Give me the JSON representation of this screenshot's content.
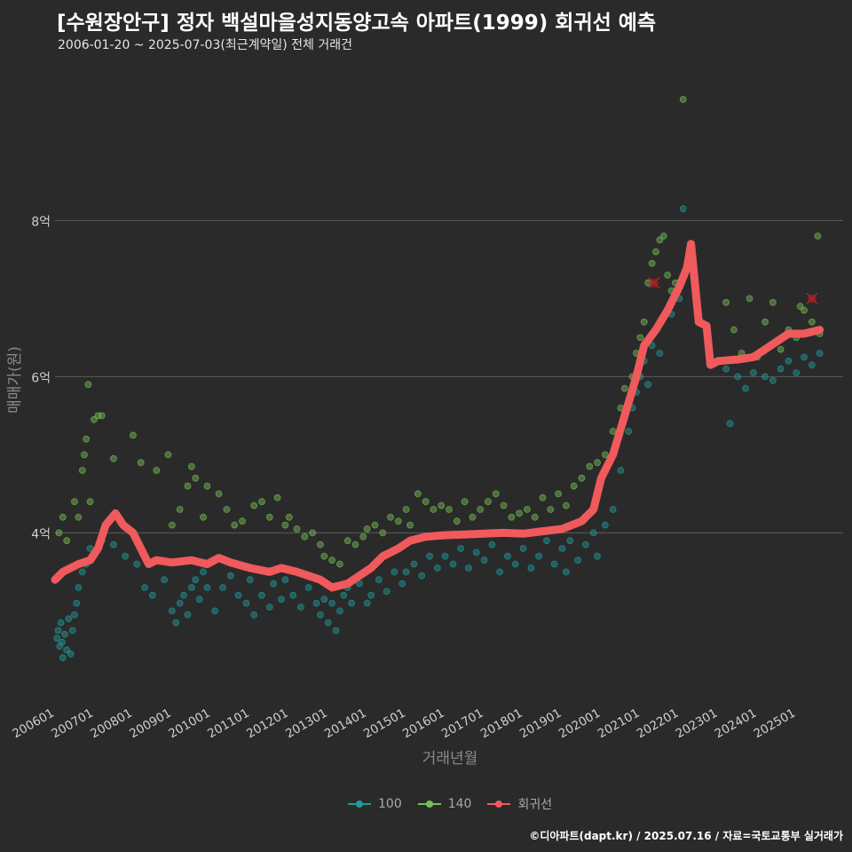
{
  "title": "[수원장안구] 정자 백설마을성지동양고속 아파트(1999) 회귀선 예측",
  "subtitle": "2006-01-20 ~ 2025-07-03(최근계약일) 전체 거래건",
  "caption": "©디아파트(dapt.kr) / 2025.07.16 / 자료=국토교통부 실거래가",
  "colors": {
    "background": "#2a2a2b",
    "grid": "#5a5a5a",
    "series_100": "#1f9e99",
    "series_140": "#76c155",
    "regression": "#f05a5c",
    "outlier": "#b22222"
  },
  "chart_data": {
    "type": "scatter",
    "title": "[수원장안구] 정자 백설마을성지동양고속 아파트(1999) 회귀선 예측",
    "xlabel": "거래년월",
    "ylabel": "매매가(원)",
    "xlim": [
      2006.0,
      2026.2
    ],
    "ylim": [
      1.8,
      9.8
    ],
    "y_unit": "억",
    "y_ticks": [
      {
        "value": 4,
        "label": "4억"
      },
      {
        "value": 6,
        "label": "6억"
      },
      {
        "value": 8,
        "label": "8억"
      }
    ],
    "x_ticks": [
      {
        "value": 2006,
        "label": "200601"
      },
      {
        "value": 2007,
        "label": "200701"
      },
      {
        "value": 2008,
        "label": "200801"
      },
      {
        "value": 2009,
        "label": "200901"
      },
      {
        "value": 2010,
        "label": "201001"
      },
      {
        "value": 2011,
        "label": "201101"
      },
      {
        "value": 2012,
        "label": "201201"
      },
      {
        "value": 2013,
        "label": "201301"
      },
      {
        "value": 2014,
        "label": "201401"
      },
      {
        "value": 2015,
        "label": "201501"
      },
      {
        "value": 2016,
        "label": "201601"
      },
      {
        "value": 2017,
        "label": "201701"
      },
      {
        "value": 2018,
        "label": "201801"
      },
      {
        "value": 2019,
        "label": "201901"
      },
      {
        "value": 2020,
        "label": "202001"
      },
      {
        "value": 2021,
        "label": "202101"
      },
      {
        "value": 2022,
        "label": "202201"
      },
      {
        "value": 2023,
        "label": "202301"
      },
      {
        "value": 2024,
        "label": "202401"
      },
      {
        "value": 2025,
        "label": "202501"
      }
    ],
    "legend": [
      {
        "key": "100",
        "label": "100"
      },
      {
        "key": "140",
        "label": "140"
      },
      {
        "key": "reg",
        "label": "회귀선"
      }
    ],
    "legend_position": "bottom",
    "series": [
      {
        "name": "100",
        "points": [
          [
            2006.05,
            2.65
          ],
          [
            2006.08,
            2.75
          ],
          [
            2006.12,
            2.55
          ],
          [
            2006.15,
            2.85
          ],
          [
            2006.18,
            2.6
          ],
          [
            2006.2,
            2.4
          ],
          [
            2006.25,
            2.7
          ],
          [
            2006.3,
            2.5
          ],
          [
            2006.35,
            2.9
          ],
          [
            2006.4,
            2.45
          ],
          [
            2006.45,
            2.75
          ],
          [
            2006.5,
            2.95
          ],
          [
            2006.55,
            3.1
          ],
          [
            2006.6,
            3.3
          ],
          [
            2006.7,
            3.5
          ],
          [
            2006.8,
            3.6
          ],
          [
            2006.9,
            3.8
          ],
          [
            2007.2,
            3.9
          ],
          [
            2007.5,
            3.85
          ],
          [
            2007.8,
            3.7
          ],
          [
            2008.1,
            3.6
          ],
          [
            2008.3,
            3.3
          ],
          [
            2008.5,
            3.2
          ],
          [
            2008.8,
            3.4
          ],
          [
            2009.0,
            3.0
          ],
          [
            2009.1,
            2.85
          ],
          [
            2009.2,
            3.1
          ],
          [
            2009.3,
            3.2
          ],
          [
            2009.4,
            2.95
          ],
          [
            2009.5,
            3.3
          ],
          [
            2009.6,
            3.4
          ],
          [
            2009.7,
            3.15
          ],
          [
            2009.8,
            3.5
          ],
          [
            2009.9,
            3.3
          ],
          [
            2010.1,
            3.0
          ],
          [
            2010.3,
            3.3
          ],
          [
            2010.5,
            3.45
          ],
          [
            2010.7,
            3.2
          ],
          [
            2010.9,
            3.1
          ],
          [
            2011.0,
            3.4
          ],
          [
            2011.1,
            2.95
          ],
          [
            2011.3,
            3.2
          ],
          [
            2011.5,
            3.05
          ],
          [
            2011.6,
            3.35
          ],
          [
            2011.8,
            3.15
          ],
          [
            2011.9,
            3.4
          ],
          [
            2012.1,
            3.2
          ],
          [
            2012.3,
            3.05
          ],
          [
            2012.5,
            3.3
          ],
          [
            2012.7,
            3.1
          ],
          [
            2012.8,
            2.95
          ],
          [
            2012.9,
            3.15
          ],
          [
            2013.0,
            2.85
          ],
          [
            2013.1,
            3.1
          ],
          [
            2013.2,
            2.75
          ],
          [
            2013.3,
            3.0
          ],
          [
            2013.4,
            3.2
          ],
          [
            2013.5,
            3.3
          ],
          [
            2013.6,
            3.1
          ],
          [
            2013.8,
            3.35
          ],
          [
            2014.0,
            3.1
          ],
          [
            2014.1,
            3.2
          ],
          [
            2014.3,
            3.4
          ],
          [
            2014.5,
            3.25
          ],
          [
            2014.7,
            3.5
          ],
          [
            2014.9,
            3.35
          ],
          [
            2015.0,
            3.5
          ],
          [
            2015.2,
            3.6
          ],
          [
            2015.4,
            3.45
          ],
          [
            2015.6,
            3.7
          ],
          [
            2015.8,
            3.55
          ],
          [
            2016.0,
            3.7
          ],
          [
            2016.2,
            3.6
          ],
          [
            2016.4,
            3.8
          ],
          [
            2016.6,
            3.55
          ],
          [
            2016.8,
            3.75
          ],
          [
            2017.0,
            3.65
          ],
          [
            2017.2,
            3.85
          ],
          [
            2017.4,
            3.5
          ],
          [
            2017.6,
            3.7
          ],
          [
            2017.8,
            3.6
          ],
          [
            2018.0,
            3.8
          ],
          [
            2018.2,
            3.55
          ],
          [
            2018.4,
            3.7
          ],
          [
            2018.6,
            3.9
          ],
          [
            2018.8,
            3.6
          ],
          [
            2019.0,
            3.8
          ],
          [
            2019.1,
            3.5
          ],
          [
            2019.2,
            3.9
          ],
          [
            2019.4,
            3.65
          ],
          [
            2019.6,
            3.85
          ],
          [
            2019.8,
            4.0
          ],
          [
            2019.9,
            3.7
          ],
          [
            2020.1,
            4.1
          ],
          [
            2020.3,
            4.3
          ],
          [
            2020.5,
            4.8
          ],
          [
            2020.7,
            5.3
          ],
          [
            2020.8,
            5.6
          ],
          [
            2020.9,
            5.8
          ],
          [
            2021.0,
            6.0
          ],
          [
            2021.1,
            6.2
          ],
          [
            2021.2,
            5.9
          ],
          [
            2021.3,
            6.4
          ],
          [
            2021.5,
            6.3
          ],
          [
            2021.8,
            6.8
          ],
          [
            2022.0,
            7.0
          ],
          [
            2022.1,
            8.15
          ],
          [
            2023.2,
            6.1
          ],
          [
            2023.3,
            5.4
          ],
          [
            2023.5,
            6.0
          ],
          [
            2023.7,
            5.85
          ],
          [
            2023.9,
            6.05
          ],
          [
            2024.2,
            6.0
          ],
          [
            2024.4,
            5.95
          ],
          [
            2024.6,
            6.1
          ],
          [
            2024.8,
            6.2
          ],
          [
            2025.0,
            6.05
          ],
          [
            2025.2,
            6.25
          ],
          [
            2025.4,
            6.15
          ],
          [
            2025.6,
            6.3
          ]
        ]
      },
      {
        "name": "140",
        "points": [
          [
            2006.1,
            4.0
          ],
          [
            2006.2,
            4.2
          ],
          [
            2006.3,
            3.9
          ],
          [
            2006.5,
            4.4
          ],
          [
            2006.6,
            4.2
          ],
          [
            2006.7,
            4.8
          ],
          [
            2006.75,
            5.0
          ],
          [
            2006.8,
            5.2
          ],
          [
            2006.85,
            5.9
          ],
          [
            2006.9,
            4.4
          ],
          [
            2007.0,
            5.45
          ],
          [
            2007.1,
            5.5
          ],
          [
            2007.2,
            5.5
          ],
          [
            2007.5,
            4.95
          ],
          [
            2008.0,
            5.25
          ],
          [
            2008.2,
            4.9
          ],
          [
            2008.6,
            4.8
          ],
          [
            2008.9,
            5.0
          ],
          [
            2009.0,
            4.1
          ],
          [
            2009.2,
            4.3
          ],
          [
            2009.4,
            4.6
          ],
          [
            2009.5,
            4.85
          ],
          [
            2009.6,
            4.7
          ],
          [
            2009.8,
            4.2
          ],
          [
            2009.9,
            4.6
          ],
          [
            2010.2,
            4.5
          ],
          [
            2010.4,
            4.3
          ],
          [
            2010.6,
            4.1
          ],
          [
            2010.8,
            4.15
          ],
          [
            2011.1,
            4.35
          ],
          [
            2011.3,
            4.4
          ],
          [
            2011.5,
            4.2
          ],
          [
            2011.7,
            4.45
          ],
          [
            2011.9,
            4.1
          ],
          [
            2012.0,
            4.2
          ],
          [
            2012.2,
            4.05
          ],
          [
            2012.4,
            3.95
          ],
          [
            2012.6,
            4.0
          ],
          [
            2012.8,
            3.85
          ],
          [
            2012.9,
            3.7
          ],
          [
            2013.1,
            3.65
          ],
          [
            2013.3,
            3.6
          ],
          [
            2013.5,
            3.9
          ],
          [
            2013.7,
            3.85
          ],
          [
            2013.9,
            3.95
          ],
          [
            2014.0,
            4.05
          ],
          [
            2014.2,
            4.1
          ],
          [
            2014.4,
            4.0
          ],
          [
            2014.6,
            4.2
          ],
          [
            2014.8,
            4.15
          ],
          [
            2015.0,
            4.3
          ],
          [
            2015.1,
            4.1
          ],
          [
            2015.3,
            4.5
          ],
          [
            2015.5,
            4.4
          ],
          [
            2015.7,
            4.3
          ],
          [
            2015.9,
            4.35
          ],
          [
            2016.1,
            4.3
          ],
          [
            2016.3,
            4.15
          ],
          [
            2016.5,
            4.4
          ],
          [
            2016.7,
            4.2
          ],
          [
            2016.9,
            4.3
          ],
          [
            2017.1,
            4.4
          ],
          [
            2017.3,
            4.5
          ],
          [
            2017.5,
            4.35
          ],
          [
            2017.7,
            4.2
          ],
          [
            2017.9,
            4.25
          ],
          [
            2018.1,
            4.3
          ],
          [
            2018.3,
            4.2
          ],
          [
            2018.5,
            4.45
          ],
          [
            2018.7,
            4.3
          ],
          [
            2018.9,
            4.5
          ],
          [
            2019.1,
            4.35
          ],
          [
            2019.3,
            4.6
          ],
          [
            2019.5,
            4.7
          ],
          [
            2019.7,
            4.85
          ],
          [
            2019.9,
            4.9
          ],
          [
            2020.1,
            5.0
          ],
          [
            2020.3,
            5.3
          ],
          [
            2020.5,
            5.6
          ],
          [
            2020.6,
            5.85
          ],
          [
            2020.8,
            6.0
          ],
          [
            2020.9,
            6.3
          ],
          [
            2021.0,
            6.5
          ],
          [
            2021.1,
            6.7
          ],
          [
            2021.2,
            7.2
          ],
          [
            2021.3,
            7.45
          ],
          [
            2021.4,
            7.6
          ],
          [
            2021.5,
            7.75
          ],
          [
            2021.6,
            7.8
          ],
          [
            2021.7,
            7.3
          ],
          [
            2021.8,
            7.1
          ],
          [
            2021.9,
            7.2
          ],
          [
            2022.1,
            9.55
          ],
          [
            2023.2,
            6.95
          ],
          [
            2023.4,
            6.6
          ],
          [
            2023.6,
            6.3
          ],
          [
            2023.8,
            7.0
          ],
          [
            2024.0,
            6.25
          ],
          [
            2024.2,
            6.7
          ],
          [
            2024.4,
            6.95
          ],
          [
            2024.6,
            6.35
          ],
          [
            2024.8,
            6.6
          ],
          [
            2025.0,
            6.5
          ],
          [
            2025.1,
            6.9
          ],
          [
            2025.2,
            6.85
          ],
          [
            2025.4,
            6.7
          ],
          [
            2025.55,
            7.8
          ],
          [
            2025.6,
            6.55
          ]
        ]
      }
    ],
    "outliers": [
      [
        2021.35,
        7.2
      ],
      [
        2025.4,
        7.0
      ]
    ],
    "regression": [
      [
        2006.0,
        3.4
      ],
      [
        2006.2,
        3.5
      ],
      [
        2006.6,
        3.6
      ],
      [
        2006.9,
        3.65
      ],
      [
        2007.1,
        3.8
      ],
      [
        2007.3,
        4.1
      ],
      [
        2007.55,
        4.25
      ],
      [
        2007.75,
        4.1
      ],
      [
        2008.0,
        4.0
      ],
      [
        2008.2,
        3.8
      ],
      [
        2008.4,
        3.6
      ],
      [
        2008.6,
        3.65
      ],
      [
        2009.0,
        3.62
      ],
      [
        2009.5,
        3.65
      ],
      [
        2009.9,
        3.6
      ],
      [
        2010.2,
        3.68
      ],
      [
        2010.5,
        3.62
      ],
      [
        2011.0,
        3.55
      ],
      [
        2011.5,
        3.5
      ],
      [
        2011.8,
        3.55
      ],
      [
        2012.2,
        3.5
      ],
      [
        2012.5,
        3.45
      ],
      [
        2012.8,
        3.4
      ],
      [
        2013.1,
        3.3
      ],
      [
        2013.5,
        3.35
      ],
      [
        2013.8,
        3.45
      ],
      [
        2014.1,
        3.55
      ],
      [
        2014.4,
        3.7
      ],
      [
        2014.8,
        3.8
      ],
      [
        2015.1,
        3.9
      ],
      [
        2015.5,
        3.95
      ],
      [
        2016.0,
        3.97
      ],
      [
        2016.5,
        3.98
      ],
      [
        2017.0,
        3.99
      ],
      [
        2017.5,
        4.0
      ],
      [
        2018.0,
        3.99
      ],
      [
        2018.5,
        4.02
      ],
      [
        2019.0,
        4.05
      ],
      [
        2019.5,
        4.15
      ],
      [
        2019.8,
        4.3
      ],
      [
        2020.0,
        4.7
      ],
      [
        2020.3,
        5.0
      ],
      [
        2020.6,
        5.5
      ],
      [
        2020.9,
        6.0
      ],
      [
        2021.1,
        6.4
      ],
      [
        2021.4,
        6.6
      ],
      [
        2021.7,
        6.85
      ],
      [
        2022.0,
        7.15
      ],
      [
        2022.2,
        7.4
      ],
      [
        2022.3,
        7.7
      ],
      [
        2022.5,
        6.7
      ],
      [
        2022.7,
        6.65
      ],
      [
        2022.8,
        6.15
      ],
      [
        2023.0,
        6.2
      ],
      [
        2023.5,
        6.22
      ],
      [
        2023.9,
        6.25
      ],
      [
        2024.2,
        6.35
      ],
      [
        2024.5,
        6.45
      ],
      [
        2024.8,
        6.55
      ],
      [
        2025.2,
        6.55
      ],
      [
        2025.6,
        6.6
      ]
    ]
  }
}
